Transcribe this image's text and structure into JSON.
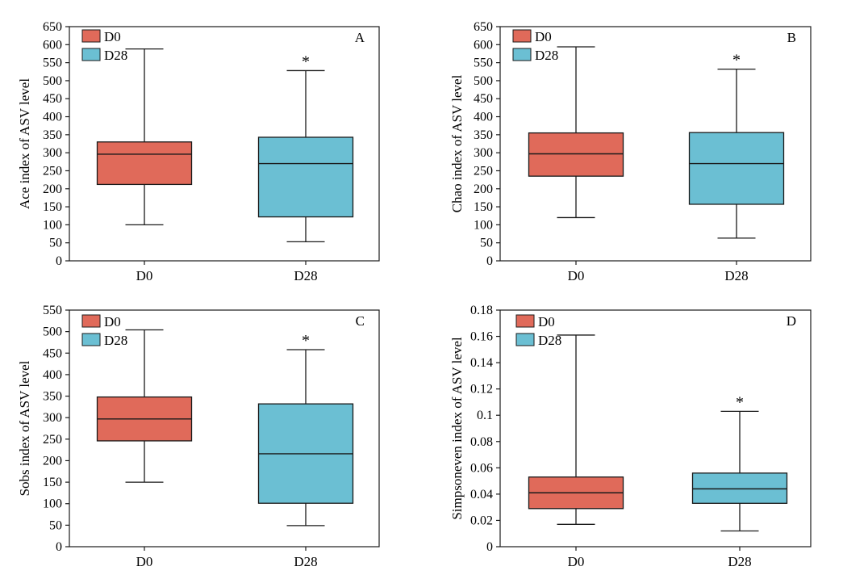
{
  "colors": {
    "D0": "#e06a5a",
    "D28": "#6bbfd3",
    "line": "#1a1a1a"
  },
  "chart_data": [
    {
      "type": "box",
      "panel_letter": "A",
      "ylabel": "Ace index of ASV level",
      "ylim": [
        0,
        650
      ],
      "yticks": [
        0,
        50,
        100,
        150,
        200,
        250,
        300,
        350,
        400,
        450,
        500,
        550,
        600,
        650
      ],
      "ytick_labels": [
        "0",
        "50",
        "100",
        "150",
        "200",
        "250",
        "300",
        "350",
        "400",
        "450",
        "500",
        "550",
        "600",
        "650"
      ],
      "categories": [
        "D0",
        "D28"
      ],
      "legend": [
        "D0",
        "D28"
      ],
      "legend_position": "top-left",
      "series": [
        {
          "name": "D0",
          "min": 100,
          "q1": 212,
          "median": 296,
          "q3": 330,
          "max": 588,
          "mark": ""
        },
        {
          "name": "D28",
          "min": 53,
          "q1": 122,
          "median": 270,
          "q3": 343,
          "max": 528,
          "mark": "*"
        }
      ]
    },
    {
      "type": "box",
      "panel_letter": "B",
      "ylabel": "Chao index of ASV level",
      "ylim": [
        0,
        650
      ],
      "yticks": [
        0,
        50,
        100,
        150,
        200,
        250,
        300,
        350,
        400,
        450,
        500,
        550,
        600,
        650
      ],
      "ytick_labels": [
        "0",
        "50",
        "100",
        "150",
        "200",
        "250",
        "300",
        "350",
        "400",
        "450",
        "500",
        "550",
        "600",
        "650"
      ],
      "categories": [
        "D0",
        "D28"
      ],
      "legend": [
        "D0",
        "D28"
      ],
      "legend_position": "top-left",
      "series": [
        {
          "name": "D0",
          "min": 120,
          "q1": 235,
          "median": 297,
          "q3": 355,
          "max": 594,
          "mark": ""
        },
        {
          "name": "D28",
          "min": 63,
          "q1": 157,
          "median": 270,
          "q3": 356,
          "max": 532,
          "mark": "*"
        }
      ]
    },
    {
      "type": "box",
      "panel_letter": "C",
      "ylabel": "Sobs index of ASV level",
      "ylim": [
        0,
        550
      ],
      "yticks": [
        0,
        50,
        100,
        150,
        200,
        250,
        300,
        350,
        400,
        450,
        500,
        550
      ],
      "ytick_labels": [
        "0",
        "50",
        "100",
        "150",
        "200",
        "250",
        "300",
        "350",
        "400",
        "450",
        "500",
        "550"
      ],
      "categories": [
        "D0",
        "D28"
      ],
      "legend": [
        "D0",
        "D28"
      ],
      "legend_position": "top-left",
      "series": [
        {
          "name": "D0",
          "min": 150,
          "q1": 246,
          "median": 297,
          "q3": 348,
          "max": 504,
          "mark": ""
        },
        {
          "name": "D28",
          "min": 49,
          "q1": 101,
          "median": 216,
          "q3": 332,
          "max": 458,
          "mark": "*"
        }
      ]
    },
    {
      "type": "box",
      "panel_letter": "D",
      "ylabel": "Simpsoneven index of ASV level",
      "ylim": [
        0,
        0.18
      ],
      "yticks": [
        0,
        0.02,
        0.04,
        0.06,
        0.08,
        0.1,
        0.12,
        0.14,
        0.16,
        0.18
      ],
      "ytick_labels": [
        "0",
        "0.02",
        "0.04",
        "0.06",
        "0.08",
        "0.1",
        "0.12",
        "0.14",
        "0.16",
        "0.18"
      ],
      "categories": [
        "D0",
        "D28"
      ],
      "legend": [
        "D0",
        "D28"
      ],
      "legend_position": "top-left",
      "series": [
        {
          "name": "D0",
          "min": 0.017,
          "q1": 0.029,
          "median": 0.041,
          "q3": 0.053,
          "max": 0.161,
          "mark": ""
        },
        {
          "name": "D28",
          "min": 0.012,
          "q1": 0.033,
          "median": 0.044,
          "q3": 0.056,
          "max": 0.103,
          "mark": "*"
        }
      ]
    }
  ]
}
